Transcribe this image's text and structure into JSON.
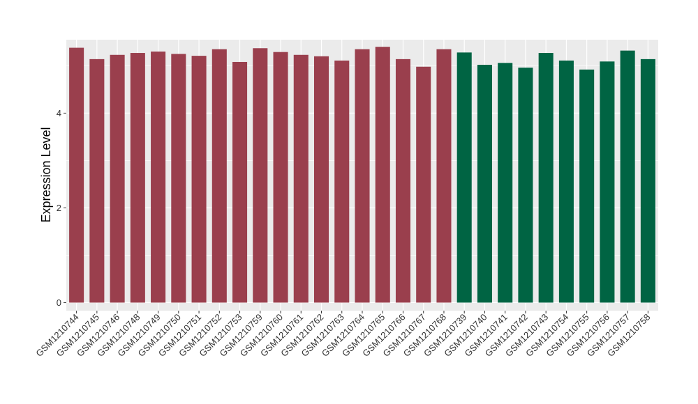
{
  "chart_data": {
    "type": "bar",
    "title": "",
    "xlabel": "",
    "ylabel": "Expression Level",
    "ylim": [
      -0.17,
      5.55
    ],
    "yticks": [
      0,
      2,
      4
    ],
    "grid": true,
    "background": "#ebebeb",
    "colors": {
      "group1": "#9a3f4d",
      "group2": "#006443"
    },
    "categories": [
      "GSM1210744",
      "GSM1210745",
      "GSM1210746",
      "GSM1210748",
      "GSM1210749",
      "GSM1210750",
      "GSM1210751",
      "GSM1210752",
      "GSM1210753",
      "GSM1210759",
      "GSM1210760",
      "GSM1210761",
      "GSM1210762",
      "GSM1210763",
      "GSM1210764",
      "GSM1210765",
      "GSM1210766",
      "GSM1210767",
      "GSM1210768",
      "GSM1210739",
      "GSM1210740",
      "GSM1210741",
      "GSM1210742",
      "GSM1210743",
      "GSM1210754",
      "GSM1210755",
      "GSM1210756",
      "GSM1210757",
      "GSM1210758"
    ],
    "values": [
      5.38,
      5.14,
      5.23,
      5.27,
      5.3,
      5.25,
      5.21,
      5.35,
      5.08,
      5.37,
      5.29,
      5.23,
      5.2,
      5.11,
      5.35,
      5.4,
      5.14,
      4.98,
      5.35,
      5.28,
      5.02,
      5.06,
      4.96,
      5.27,
      5.11,
      4.92,
      5.09,
      5.32,
      5.14
    ],
    "groups": [
      "group1",
      "group1",
      "group1",
      "group1",
      "group1",
      "group1",
      "group1",
      "group1",
      "group1",
      "group1",
      "group1",
      "group1",
      "group1",
      "group1",
      "group1",
      "group1",
      "group1",
      "group1",
      "group1",
      "group2",
      "group2",
      "group2",
      "group2",
      "group2",
      "group2",
      "group2",
      "group2",
      "group2",
      "group2"
    ]
  }
}
